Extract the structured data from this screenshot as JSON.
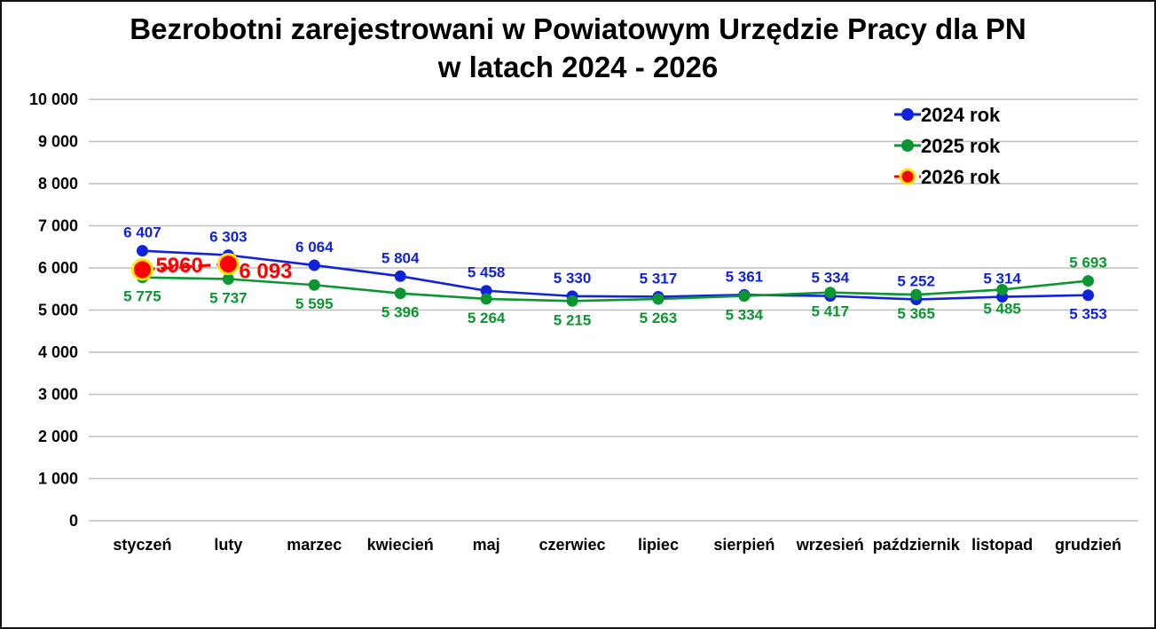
{
  "title": {
    "line1": "Bezrobotni zarejestrowani w Powiatowym Urzędzie Pracy dla PN",
    "line2": "w latach 2024 - 2026"
  },
  "chart_data": {
    "type": "line",
    "title": "Bezrobotni zarejestrowani w Powiatowym Urzędzie Pracy dla PN w latach 2024 - 2026",
    "categories": [
      "styczeń",
      "luty",
      "marzec",
      "kwiecień",
      "maj",
      "czerwiec",
      "lipiec",
      "sierpień",
      "wrzesień",
      "październik",
      "listopad",
      "grudzień"
    ],
    "xlabel": "",
    "ylabel": "",
    "ylim": [
      0,
      10000
    ],
    "ytick_step": 1000,
    "ytick_labels": [
      "0",
      "1 000",
      "2 000",
      "3 000",
      "4 000",
      "5 000",
      "6 000",
      "7 000",
      "8 000",
      "9 000",
      "10 000"
    ],
    "grid": true,
    "gridline_color": "#BFBFBF",
    "legend_position": "top-right",
    "series": [
      {
        "name": "2024 rok",
        "color": "#1122DD",
        "line_style": "solid",
        "values": [
          6407,
          6303,
          6064,
          5804,
          5458,
          5330,
          5317,
          5361,
          5334,
          5252,
          5314,
          5353
        ],
        "labels": [
          "6 407",
          "6 303",
          "6 064",
          "5 804",
          "5 458",
          "5 330",
          "5 317",
          "5 361",
          "5 334",
          "5 252",
          "5 314",
          "5 353"
        ],
        "label_side": [
          "above",
          "above",
          "above",
          "above",
          "above",
          "above",
          "above",
          "above",
          "above",
          "above",
          "above",
          "below"
        ]
      },
      {
        "name": "2025 rok",
        "color": "#0B9632",
        "line_style": "solid",
        "values": [
          5775,
          5737,
          5595,
          5396,
          5264,
          5215,
          5263,
          5334,
          5417,
          5365,
          5485,
          5693
        ],
        "labels": [
          "5 775",
          "5 737",
          "5 595",
          "5 396",
          "5 264",
          "5 215",
          "5 263",
          "5 334",
          "5 417",
          "5 365",
          "5 485",
          "5 693"
        ],
        "label_side": [
          "below",
          "below",
          "below",
          "below",
          "below",
          "below",
          "below",
          "below",
          "below",
          "below",
          "below",
          "above"
        ]
      },
      {
        "name": "2026 rok",
        "color": "#FF0000",
        "marker_ring": "#FFE600",
        "line_style": "dashed",
        "values": [
          5960,
          6093,
          null,
          null,
          null,
          null,
          null,
          null,
          null,
          null,
          null,
          null
        ],
        "labels": [
          "5960",
          "6 093",
          null,
          null,
          null,
          null,
          null,
          null,
          null,
          null,
          null,
          null
        ],
        "label_side": [
          "right",
          "right",
          null,
          null,
          null,
          null,
          null,
          null,
          null,
          null,
          null,
          null
        ]
      }
    ]
  }
}
